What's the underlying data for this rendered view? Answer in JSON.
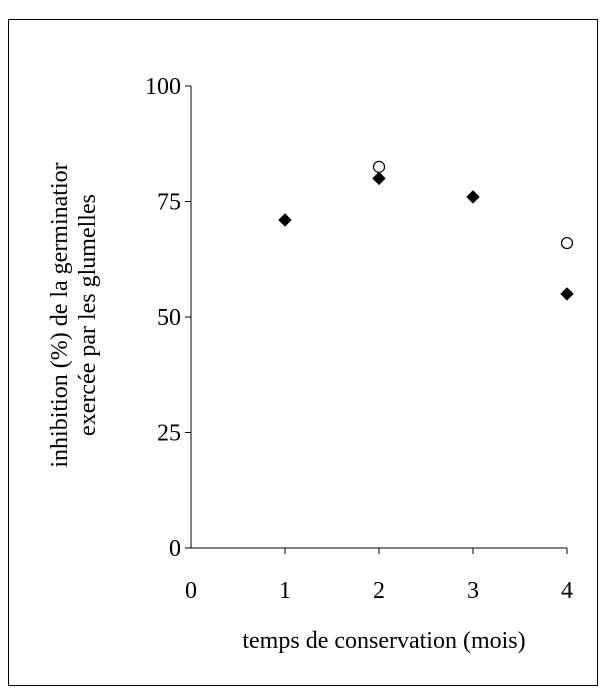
{
  "chart_data": {
    "type": "scatter",
    "title": "",
    "xlabel": "temps de conservation (mois)",
    "ylabel_lines": [
      "inhibition (%) de la germinatior",
      "exercée par les glumelles"
    ],
    "xlim": [
      0,
      4
    ],
    "ylim": [
      0,
      100
    ],
    "x_ticks": [
      0,
      1,
      2,
      3,
      4
    ],
    "y_ticks": [
      0,
      25,
      50,
      75,
      100
    ],
    "x_tick_labels": [
      "0",
      "1",
      "2",
      "3",
      "4"
    ],
    "y_tick_labels": [
      "0",
      "25",
      "50",
      "75",
      "100"
    ],
    "grid": false,
    "legend": "none",
    "series": [
      {
        "marker": "diamond-filled",
        "color": "#000000",
        "x": [
          1,
          2,
          3,
          4
        ],
        "y": [
          71,
          80,
          76,
          55
        ]
      },
      {
        "marker": "circle-open",
        "color": "#000000",
        "x": [
          2,
          4
        ],
        "y": [
          82.5,
          66
        ]
      }
    ]
  }
}
